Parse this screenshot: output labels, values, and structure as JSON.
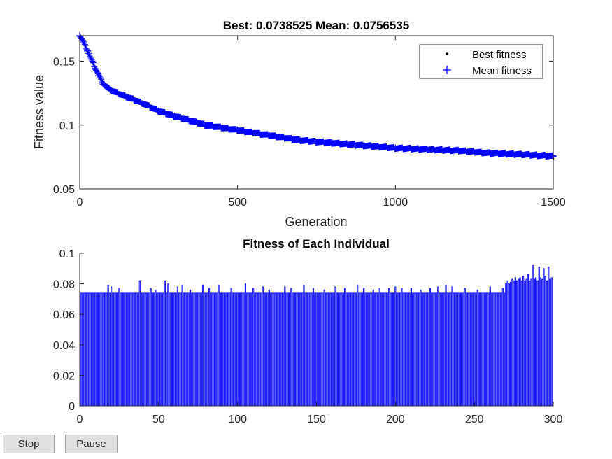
{
  "chart_data": [
    {
      "type": "scatter",
      "title": "Best: 0.0738525 Mean: 0.0756535",
      "xlabel": "Generation",
      "ylabel": "Fitness value",
      "xlim": [
        0,
        1500
      ],
      "ylim": [
        0.05,
        0.17
      ],
      "xticks": [
        0,
        500,
        1000,
        1500
      ],
      "yticks": [
        0.05,
        0.1,
        0.15
      ],
      "ytick_labels": [
        "0.05",
        "0.1",
        "0.15"
      ],
      "legend_position": "top-right",
      "series": [
        {
          "name": "Best fitness",
          "marker": "dot",
          "color": "#000000",
          "x": [
            0,
            10,
            25,
            50,
            75,
            100,
            150,
            200,
            250,
            300,
            400,
            500,
            600,
            700,
            800,
            900,
            1000,
            1100,
            1200,
            1300,
            1400,
            1500
          ],
          "y": [
            0.169,
            0.165,
            0.157,
            0.143,
            0.131,
            0.126,
            0.121,
            0.116,
            0.11,
            0.106,
            0.099,
            0.095,
            0.091,
            0.087,
            0.085,
            0.083,
            0.081,
            0.08,
            0.079,
            0.077,
            0.076,
            0.0739
          ]
        },
        {
          "name": "Mean fitness",
          "marker": "plus",
          "color": "#0000ff",
          "x": [
            0,
            10,
            25,
            50,
            75,
            100,
            150,
            200,
            250,
            300,
            400,
            500,
            600,
            700,
            800,
            900,
            1000,
            1100,
            1200,
            1300,
            1400,
            1500
          ],
          "y": [
            0.17,
            0.166,
            0.158,
            0.144,
            0.132,
            0.127,
            0.122,
            0.117,
            0.111,
            0.107,
            0.1,
            0.096,
            0.092,
            0.088,
            0.086,
            0.084,
            0.082,
            0.081,
            0.08,
            0.078,
            0.077,
            0.0757
          ]
        }
      ]
    },
    {
      "type": "bar",
      "title": "Fitness of Each Individual",
      "xlabel": "",
      "ylabel": "",
      "xlim": [
        0,
        300
      ],
      "ylim": [
        0,
        0.1
      ],
      "xticks": [
        0,
        50,
        100,
        150,
        200,
        250,
        300
      ],
      "yticks": [
        0,
        0.02,
        0.04,
        0.06,
        0.08,
        0.1
      ],
      "ytick_labels": [
        "0",
        "0.02",
        "0.04",
        "0.06",
        "0.08",
        "0.1"
      ],
      "color": "#0000ff",
      "baseline_value": 0.0739,
      "spikes": [
        [
          18,
          0.079
        ],
        [
          20,
          0.078
        ],
        [
          25,
          0.077
        ],
        [
          38,
          0.082
        ],
        [
          45,
          0.077
        ],
        [
          48,
          0.076
        ],
        [
          54,
          0.082
        ],
        [
          56,
          0.08
        ],
        [
          62,
          0.078
        ],
        [
          65,
          0.079
        ],
        [
          70,
          0.076
        ],
        [
          78,
          0.079
        ],
        [
          82,
          0.077
        ],
        [
          88,
          0.079
        ],
        [
          96,
          0.077
        ],
        [
          105,
          0.08
        ],
        [
          110,
          0.077
        ],
        [
          116,
          0.078
        ],
        [
          120,
          0.076
        ],
        [
          130,
          0.078
        ],
        [
          134,
          0.077
        ],
        [
          142,
          0.079
        ],
        [
          148,
          0.077
        ],
        [
          155,
          0.076
        ],
        [
          162,
          0.078
        ],
        [
          168,
          0.077
        ],
        [
          176,
          0.079
        ],
        [
          180,
          0.077
        ],
        [
          186,
          0.076
        ],
        [
          190,
          0.077
        ],
        [
          196,
          0.077
        ],
        [
          200,
          0.078
        ],
        [
          204,
          0.077
        ],
        [
          210,
          0.077
        ],
        [
          216,
          0.076
        ],
        [
          222,
          0.077
        ],
        [
          227,
          0.078
        ],
        [
          232,
          0.079
        ],
        [
          236,
          0.078
        ],
        [
          244,
          0.077
        ],
        [
          252,
          0.076
        ],
        [
          260,
          0.078
        ],
        [
          268,
          0.077
        ],
        [
          270,
          0.08
        ],
        [
          271,
          0.082
        ],
        [
          272,
          0.08
        ],
        [
          273,
          0.081
        ],
        [
          274,
          0.083
        ],
        [
          275,
          0.082
        ],
        [
          276,
          0.084
        ],
        [
          277,
          0.082
        ],
        [
          278,
          0.083
        ],
        [
          279,
          0.084
        ],
        [
          280,
          0.082
        ],
        [
          281,
          0.085
        ],
        [
          282,
          0.082
        ],
        [
          283,
          0.083
        ],
        [
          284,
          0.086
        ],
        [
          285,
          0.082
        ],
        [
          286,
          0.083
        ],
        [
          287,
          0.092
        ],
        [
          288,
          0.083
        ],
        [
          289,
          0.084
        ],
        [
          290,
          0.082
        ],
        [
          291,
          0.091
        ],
        [
          292,
          0.084
        ],
        [
          293,
          0.083
        ],
        [
          294,
          0.09
        ],
        [
          295,
          0.085
        ],
        [
          296,
          0.082
        ],
        [
          297,
          0.091
        ],
        [
          298,
          0.083
        ],
        [
          299,
          0.084
        ]
      ]
    }
  ],
  "controls": {
    "stop_label": "Stop",
    "pause_label": "Pause"
  }
}
